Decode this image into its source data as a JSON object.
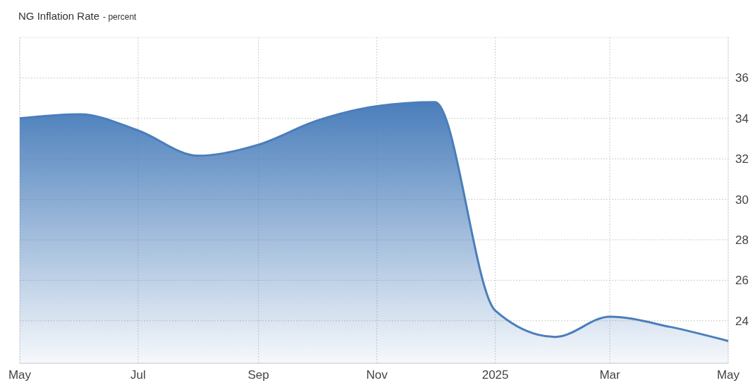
{
  "chart_data": {
    "type": "area",
    "title": "NG Inflation Rate",
    "subtitle": "- percent",
    "x": [
      "2024-05",
      "2024-06",
      "2024-07",
      "2024-08",
      "2024-09",
      "2024-10",
      "2024-11",
      "2024-12",
      "2025-01",
      "2025-02",
      "2025-03",
      "2025-04",
      "2025-05"
    ],
    "series": [
      {
        "color": "#4a7ebb",
        "values": [
          34.0,
          34.2,
          33.4,
          32.15,
          32.7,
          33.88,
          34.6,
          34.8,
          24.5,
          23.2,
          24.2,
          23.7,
          23.0
        ]
      }
    ],
    "xlim": [
      "2024-05",
      "2025-05"
    ],
    "xticks": [
      {
        "value": "2024-05",
        "label": "May"
      },
      {
        "value": "2024-07",
        "label": "Jul"
      },
      {
        "value": "2024-09",
        "label": "Sep"
      },
      {
        "value": "2024-11",
        "label": "Nov"
      },
      {
        "value": "2025-01",
        "label": "2025"
      },
      {
        "value": "2025-03",
        "label": "Mar"
      },
      {
        "value": "2025-05",
        "label": "May"
      }
    ],
    "ylim": [
      21.9,
      38
    ],
    "yticks": [
      24,
      26,
      28,
      30,
      32,
      34,
      36
    ],
    "grid": true
  }
}
